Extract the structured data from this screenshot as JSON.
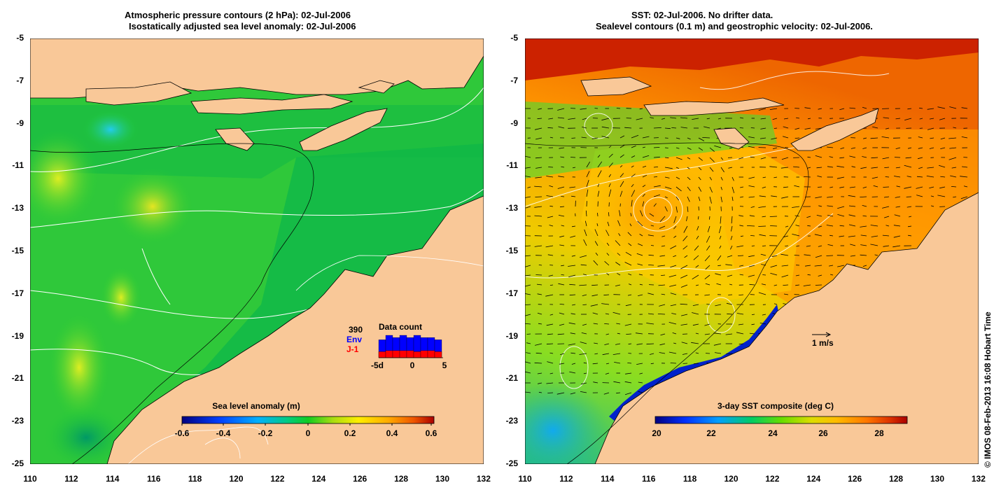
{
  "left": {
    "title_line1": "Atmospheric pressure contours (2 hPa): 02-Jul-2006",
    "title_line2": "Isostatically adjusted sea level anomaly: 02-Jul-2006",
    "colorbar": {
      "title": "Sea level anomaly (m)",
      "tick_labels": [
        "-0.6",
        "-0.4",
        "-0.2",
        "0",
        "0.2",
        "0.4",
        "0.6"
      ]
    },
    "data_count": {
      "title": "Data count",
      "count": "390",
      "env_label": "Env",
      "j1_label": "J-1",
      "x_labels": [
        "-5d",
        "0",
        "5"
      ],
      "env_values": [
        8,
        10,
        9,
        10,
        9,
        10,
        9,
        9,
        8
      ],
      "j1_values": [
        6,
        7,
        7,
        7,
        7,
        6,
        7,
        7,
        6
      ],
      "colors": {
        "env": "#0000ff",
        "j1": "#ff0000"
      }
    }
  },
  "right": {
    "title_line1": "SST: 02-Jul-2006. No drifter data.",
    "title_line2": "Sealevel contours (0.1 m) and geostrophic velocity: 02-Jul-2006.",
    "colorbar": {
      "title": "3-day SST composite (deg C)",
      "tick_labels": [
        "20",
        "22",
        "24",
        "26",
        "28"
      ]
    },
    "velocity_scale_label": "1 m/s"
  },
  "axes": {
    "lat_labels": [
      "-5",
      "-7",
      "-9",
      "-11",
      "-13",
      "-15",
      "-17",
      "-19",
      "-21",
      "-23",
      "-25"
    ],
    "lon_labels": [
      "110",
      "112",
      "114",
      "116",
      "118",
      "120",
      "122",
      "124",
      "126",
      "128",
      "130",
      "132"
    ]
  },
  "credit": "© IMOS 08-Feb-2013 16:08 Hobart Time",
  "colors": {
    "land": "#f9c898",
    "sla_ramp": [
      "#000088",
      "#0044ff",
      "#00bbff",
      "#00cc66",
      "#11cc22",
      "#aadd22",
      "#ffee00",
      "#ffaa00",
      "#ee5500",
      "#aa1100"
    ],
    "sst_ramp": [
      "#000088",
      "#0033ff",
      "#00aaff",
      "#00cc55",
      "#66dd00",
      "#dddd00",
      "#ffbb00",
      "#ff7700",
      "#dd3300",
      "#aa1100"
    ]
  }
}
